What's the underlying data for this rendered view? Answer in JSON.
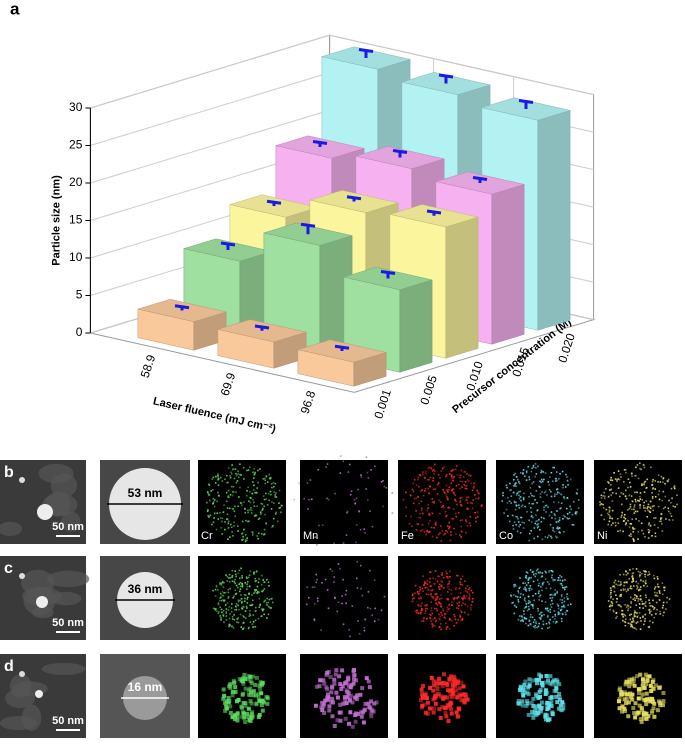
{
  "chart_data": {
    "type": "bar3d",
    "panel_label": "a",
    "ylabel": "Particle size (nm)",
    "xlabel": "Laser fluence (mJ cm⁻²)",
    "zlabel": "Precursor concentration (M)",
    "categories": [
      "58.9",
      "69.9",
      "96.8"
    ],
    "series": [
      {
        "name": "0.001",
        "color": "#f9c99b",
        "values": [
          3.8,
          3.5,
          3.2
        ],
        "errors": [
          0.5,
          0.5,
          0.5
        ]
      },
      {
        "name": "0.005",
        "color": "#9fdf9f",
        "values": [
          10,
          14.5,
          11
        ],
        "errors": [
          0.8,
          1.2,
          0.8
        ]
      },
      {
        "name": "0.010",
        "color": "#fbf59e",
        "values": [
          14,
          17,
          17.5
        ],
        "errors": [
          0.5,
          0.5,
          0.5
        ]
      },
      {
        "name": "0.015",
        "color": "#f6b2f0",
        "values": [
          20,
          21,
          20
        ],
        "errors": [
          0.6,
          0.8,
          0.6
        ]
      },
      {
        "name": "0.020",
        "color": "#b2f2f2",
        "values": [
          30,
          29,
          28
        ],
        "errors": [
          1,
          1,
          1
        ]
      }
    ],
    "error_color": "#1a1ae0",
    "ylim": [
      0,
      30
    ],
    "yticks": [
      0,
      5,
      10,
      15,
      20,
      25,
      30
    ],
    "grid": true
  },
  "panels": [
    {
      "label": "b",
      "scale_bar": "50 nm",
      "diameter": "53 nm"
    },
    {
      "label": "c",
      "scale_bar": "50 nm",
      "diameter": "36 nm"
    },
    {
      "label": "d",
      "scale_bar": "50 nm",
      "diameter": "16 nm"
    }
  ],
  "elements": [
    "Cr",
    "Mn",
    "Fe",
    "Co",
    "Ni"
  ],
  "element_colors": [
    "#5fdc5f",
    "#c070d0",
    "#ff2a2a",
    "#60e0e8",
    "#e8e060"
  ]
}
